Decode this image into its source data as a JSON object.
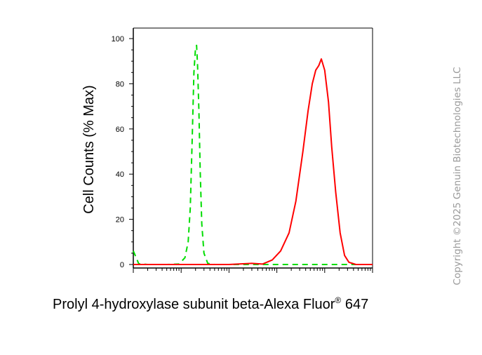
{
  "chart_data": {
    "type": "line",
    "title": "",
    "xlabel": "Prolyl 4-hydroxylase subunit beta-Alexa Fluor",
    "xlabel_sup": "®",
    "xlabel_suffix": " 647",
    "ylabel": "Cell Counts (% Max)",
    "x_scale": "log",
    "ylim": [
      0,
      100
    ],
    "yticks": [
      "0",
      "20",
      "40",
      "60",
      "80",
      "100"
    ],
    "grid": false,
    "legend": "none",
    "series": [
      {
        "color": "#00dd00",
        "dash": "dashed",
        "x": [
          1.0,
          1.3,
          2.0,
          5.0,
          9.0,
          12.0,
          14.0,
          15.5,
          17.0,
          18.5,
          20.0,
          21.0,
          22.0,
          23.5,
          25.0,
          27.0,
          30.0,
          36.0,
          50.0,
          100.0,
          1000.0,
          10000.0,
          100000.0
        ],
        "y": [
          6.0,
          0.3,
          0.0,
          0.0,
          0.2,
          3.0,
          10.0,
          25.0,
          55.0,
          85.0,
          96.0,
          97.0,
          88.0,
          68.0,
          42.0,
          18.0,
          5.0,
          0.5,
          0.0,
          0.0,
          0.0,
          0.0,
          0.0
        ]
      },
      {
        "color": "#ff0000",
        "dash": "solid",
        "x": [
          1.0,
          100.0,
          300.0,
          500.0,
          800.0,
          1200.0,
          1800.0,
          2500.0,
          3500.0,
          4500.0,
          5500.0,
          6500.0,
          7500.0,
          8500.0,
          10000.0,
          12000.0,
          14000.0,
          17000.0,
          21000.0,
          26000.0,
          32000.0,
          45000.0,
          100000.0
        ],
        "y": [
          0.0,
          0.0,
          0.5,
          0.2,
          2.0,
          6.0,
          14.0,
          28.0,
          50.0,
          68.0,
          80.0,
          86.0,
          88.0,
          91.0,
          86.0,
          72.0,
          52.0,
          32.0,
          14.0,
          4.0,
          1.0,
          0.0,
          0.0
        ]
      }
    ]
  },
  "watermark": "Copyright ©2025 Genuin Biotechnologies LLC"
}
